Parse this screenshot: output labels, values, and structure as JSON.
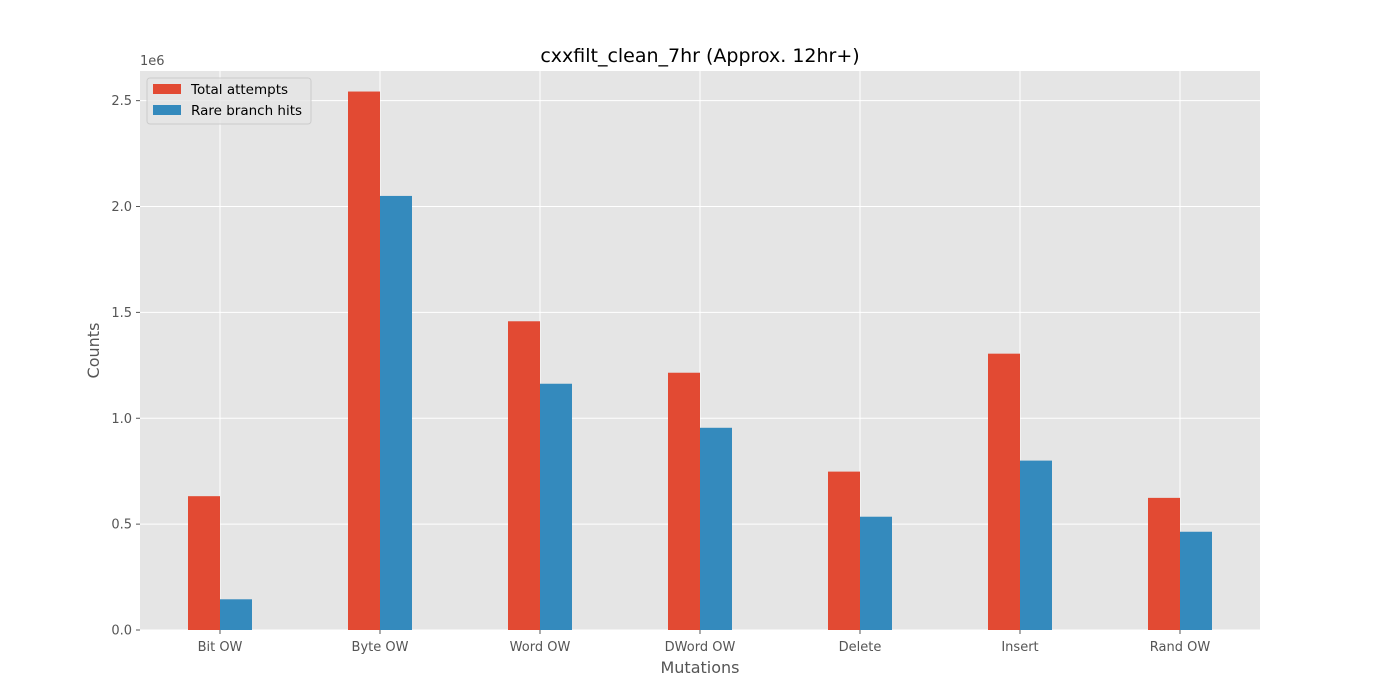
{
  "chart_data": {
    "type": "bar",
    "title": "cxxfilt_clean_7hr (Approx. 12hr+)",
    "xlabel": "Mutations",
    "ylabel": "Counts",
    "y_scale_label": "1e6",
    "categories": [
      "Bit OW",
      "Byte OW",
      "Word OW",
      "DWord OW",
      "Delete",
      "Insert",
      "Rand OW"
    ],
    "series": [
      {
        "name": "Total attempts",
        "color": "#E24A33",
        "values": [
          632000,
          2543000,
          1458000,
          1215000,
          748000,
          1305000,
          624000
        ]
      },
      {
        "name": "Rare branch hits",
        "color": "#348ABD",
        "values": [
          145000,
          2050000,
          1163000,
          955000,
          535000,
          800000,
          464000
        ]
      }
    ],
    "ylim": [
      0,
      2640000
    ],
    "yticks": [
      {
        "value": 0,
        "label": "0.0"
      },
      {
        "value": 500000,
        "label": "0.5"
      },
      {
        "value": 1000000,
        "label": "1.0"
      },
      {
        "value": 1500000,
        "label": "1.5"
      },
      {
        "value": 2000000,
        "label": "2.0"
      },
      {
        "value": 2500000,
        "label": "2.5"
      }
    ],
    "grid": true,
    "legend_position": "top-left",
    "plot_background": "#E5E5E5",
    "grid_color": "#FFFFFF"
  }
}
